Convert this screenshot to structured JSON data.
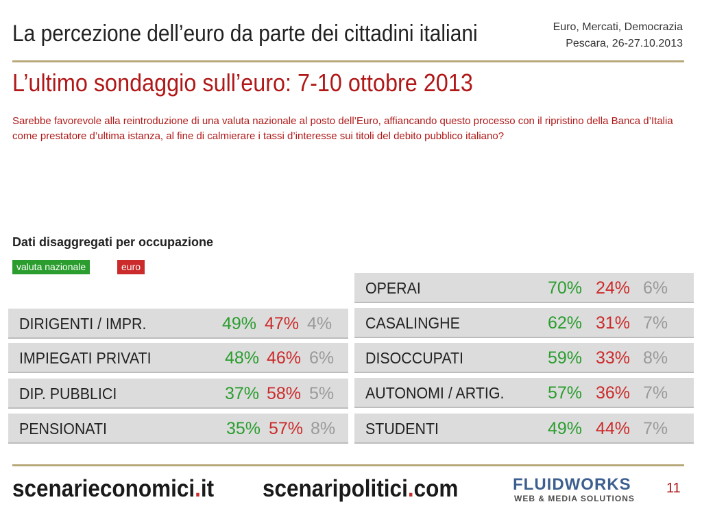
{
  "header": {
    "title": "La percezione dell’euro da parte dei cittadini italiani",
    "event_name": "Euro, Mercati, Democrazia",
    "event_place_date": "Pescara, 26-27.10.2013"
  },
  "subtitle": "L’ultimo sondaggio sull’euro: 7-10 ottobre 2013",
  "question": "Sarebbe favorevole alla reintroduzione di una valuta nazionale al posto dell’Euro, affiancando questo processo con il ripristino della Banca d’Italia come prestatore d’ultima istanza, al fine di calmierare i tassi d’interesse sui titoli del debito pubblico italiano?",
  "section_title": "Dati disaggregati per occupazione",
  "legend": {
    "national_label": "valuta nazionale",
    "euro_label": "euro",
    "national_color": "#2a9d2e",
    "euro_color": "#cc2b2b",
    "other_color": "#9a9a9a"
  },
  "table_left": [
    {
      "label": "DIRIGENTI / IMPR.",
      "national": "49%",
      "euro": "47%",
      "other": "4%"
    },
    {
      "label": "IMPIEGATI PRIVATI",
      "national": "48%",
      "euro": "46%",
      "other": "6%"
    },
    {
      "label": "DIP. PUBBLICI",
      "national": "37%",
      "euro": "58%",
      "other": "5%"
    },
    {
      "label": "PENSIONATI",
      "national": "35%",
      "euro": "57%",
      "other": "8%"
    }
  ],
  "table_right": [
    {
      "label": "OPERAI",
      "national": "70%",
      "euro": "24%",
      "other": "6%"
    },
    {
      "label": "CASALINGHE",
      "national": "62%",
      "euro": "31%",
      "other": "7%"
    },
    {
      "label": "DISOCCUPATI",
      "national": "59%",
      "euro": "33%",
      "other": "8%"
    },
    {
      "label": "AUTONOMI / ARTIG.",
      "national": "57%",
      "euro": "36%",
      "other": "7%"
    },
    {
      "label": "STUDENTI",
      "national": "49%",
      "euro": "44%",
      "other": "7%"
    }
  ],
  "footer": {
    "site1_name": "scenarieconomici",
    "site1_dot": ".",
    "site1_tld": "it",
    "site2_name": "scenaripolitici",
    "site2_dot": ".",
    "site2_tld": "com",
    "logo_main": "FLUIDWORKS",
    "logo_sub": "WEB & MEDIA SOLUTIONS",
    "page_number": "11"
  }
}
